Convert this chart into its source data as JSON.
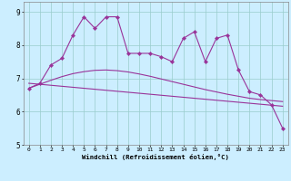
{
  "xlabel": "Windchill (Refroidissement éolien,°C)",
  "x": [
    0,
    1,
    2,
    3,
    4,
    5,
    6,
    7,
    8,
    9,
    10,
    11,
    12,
    13,
    14,
    15,
    16,
    17,
    18,
    19,
    20,
    21,
    22,
    23
  ],
  "y_main": [
    6.7,
    6.85,
    7.4,
    7.6,
    8.3,
    8.85,
    8.5,
    8.85,
    8.85,
    7.75,
    7.75,
    7.75,
    7.65,
    7.5,
    8.2,
    8.4,
    7.5,
    8.2,
    8.3,
    7.25,
    6.6,
    6.5,
    6.2,
    5.5
  ],
  "y_trend_linear": [
    6.85,
    6.82,
    6.79,
    6.76,
    6.73,
    6.7,
    6.67,
    6.64,
    6.61,
    6.58,
    6.55,
    6.52,
    6.49,
    6.46,
    6.43,
    6.4,
    6.37,
    6.34,
    6.31,
    6.28,
    6.25,
    6.22,
    6.19,
    6.16
  ],
  "y_trend_curve": [
    6.7,
    6.82,
    6.94,
    7.05,
    7.14,
    7.2,
    7.24,
    7.25,
    7.23,
    7.19,
    7.13,
    7.06,
    6.98,
    6.9,
    6.82,
    6.74,
    6.66,
    6.59,
    6.52,
    6.46,
    6.4,
    6.36,
    6.33,
    6.3
  ],
  "line_color": "#993399",
  "bg_color": "#cceeff",
  "grid_color": "#99cccc",
  "ylim": [
    5.0,
    9.3
  ],
  "xlim": [
    -0.5,
    23.5
  ]
}
